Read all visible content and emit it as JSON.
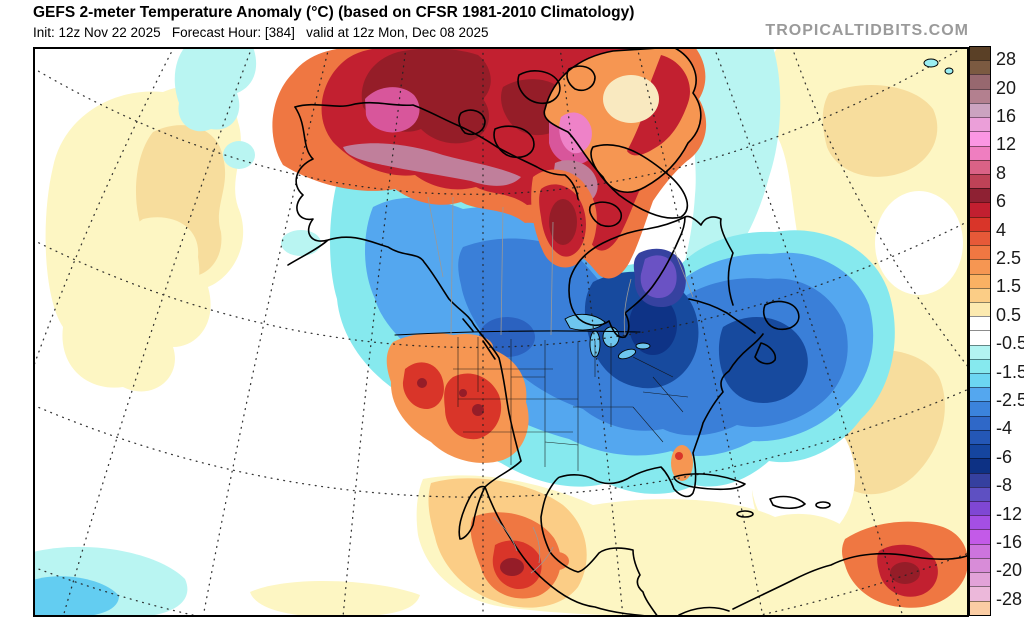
{
  "header": {
    "title": "GEFS 2-meter Temperature Anomaly (°C) (based on CFSR 1981-2010 Climatology)",
    "subtitle": "Init: 12z Nov 22 2025   Forecast Hour: [384]   valid at 12z Mon, Dec 08 2025",
    "watermark": "TROPICALTIDBITS.COM"
  },
  "colorbar": {
    "labels": [
      "28",
      "20",
      "16",
      "12",
      "8",
      "6",
      "4",
      "2.5",
      "1.5",
      "0.5",
      "-0.5",
      "-1.5",
      "-2.5",
      "-4",
      "-6",
      "-8",
      "-12",
      "-16",
      "-20",
      "-28"
    ],
    "cells": [
      "#5a4026",
      "#7b5a41",
      "#97686f",
      "#b3808f",
      "#cba3c0",
      "#eb9fd9",
      "#fb96e3",
      "#ef7ec0",
      "#da6286",
      "#bf4257",
      "#8e2133",
      "#c21f30",
      "#d93529",
      "#e65938",
      "#ef7742",
      "#f69652",
      "#fab163",
      "#fbcd86",
      "#fceab0",
      "#ffffff",
      "#ffffff",
      "#b2f4f2",
      "#86e9ee",
      "#6cd6f2",
      "#54a7ef",
      "#3b83dc",
      "#2f68c8",
      "#2457b6",
      "#15459f",
      "#0d3184",
      "#35409f",
      "#5e50c2",
      "#7f47d4",
      "#a44fe4",
      "#c35ae8",
      "#cd74de",
      "#d88cd8",
      "#e2a2d8",
      "#ecb8da",
      "#fbcda4"
    ]
  },
  "palette": {
    "pale_yellow": "#fdf6c3",
    "tan": "#f7dd9d",
    "deep_tan": "#f3cc80",
    "pale_cyan": "#b9f5f2",
    "cyan": "#86e9ee",
    "light_blue": "#63cdf1",
    "sky_blue": "#54a7ef",
    "mid_blue": "#3a7fd8",
    "blue": "#2b62c0",
    "deep_blue": "#174a9e",
    "navy": "#0e3386",
    "indigo": "#3642a0",
    "purple": "#6a52c4",
    "orange": "#ef7742",
    "light_orange": "#f69652",
    "soft_orange": "#fbcd86",
    "red": "#d93529",
    "crimson": "#c22030",
    "dark_red": "#951d28",
    "magenta": "#d8569b",
    "pink": "#ee82c8",
    "mauve": "#c07f9b",
    "lake_blue": "#6ec6ee"
  }
}
